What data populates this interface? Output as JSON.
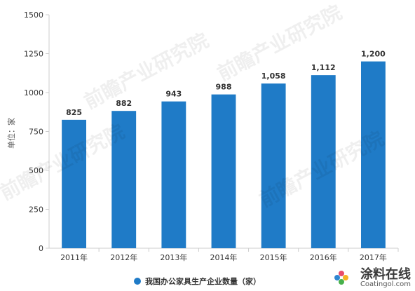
{
  "chart_data": {
    "type": "bar",
    "title": "",
    "categories": [
      "2011年",
      "2012年",
      "2013年",
      "2014年",
      "2015年",
      "2016年",
      "2017年"
    ],
    "series": [
      {
        "name": "我国办公家具生产企业数量（家）",
        "values": [
          825,
          882,
          943,
          988,
          1058,
          1112,
          1200
        ]
      }
    ],
    "data_labels": [
      "825",
      "882",
      "943",
      "988",
      "1,058",
      "1,112",
      "1,200"
    ],
    "ylabel": "单位：家",
    "xlabel": "",
    "ylim": [
      0,
      1500
    ],
    "yticks": [
      0,
      250,
      500,
      750,
      1000,
      1250,
      1500
    ],
    "ytick_labels": [
      "0",
      "250",
      "500",
      "750",
      "1000",
      "1250",
      "1500"
    ],
    "grid": false,
    "legend_position": "bottom",
    "colors": {
      "bar": "#1f7bc7",
      "axis": "#cccccc",
      "text": "#333333"
    }
  },
  "watermark": {
    "text": "前瞻产业研究院"
  },
  "brand": {
    "main": "涂料在线",
    "sub": "Coatingol.com"
  }
}
